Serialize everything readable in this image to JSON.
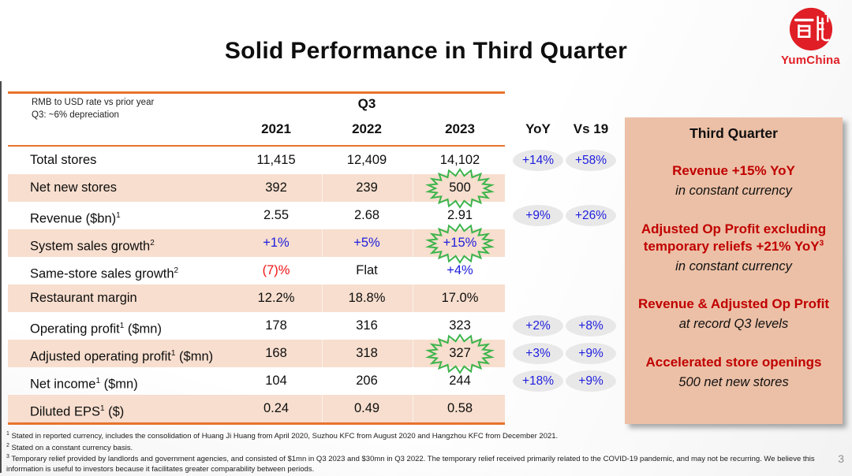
{
  "slide": {
    "title": "Solid Performance in Third Quarter",
    "page_number": "3",
    "logo": {
      "seal_characters": "百胜",
      "brand": "YumChina",
      "logo_red": "#E01E25"
    }
  },
  "table": {
    "rate_note_line1": "RMB to USD rate vs prior year",
    "rate_note_line2": "Q3: ~6% depreciation",
    "group_header": "Q3",
    "year_headers": [
      "2021",
      "2022",
      "2023"
    ],
    "yoy_header": "YoY",
    "vs19_header": "Vs 19",
    "rows": [
      {
        "pre": "Total stores",
        "sup": "",
        "post": "",
        "values": [
          "11,415",
          "12,409",
          "14,102"
        ],
        "colors": [
          "black",
          "black",
          "black"
        ],
        "star": -1,
        "yoy": "+14%",
        "vs19": "+58%",
        "shaded": false
      },
      {
        "pre": "Net new stores",
        "sup": "",
        "post": "",
        "values": [
          "392",
          "239",
          "500"
        ],
        "colors": [
          "black",
          "black",
          "black"
        ],
        "star": 2,
        "yoy": "",
        "vs19": "",
        "shaded": true
      },
      {
        "pre": "Revenue ($bn)",
        "sup": "1",
        "post": "",
        "values": [
          "2.55",
          "2.68",
          "2.91"
        ],
        "colors": [
          "black",
          "black",
          "black"
        ],
        "star": -1,
        "yoy": "+9%",
        "vs19": "+26%",
        "shaded": false
      },
      {
        "pre": "System sales growth",
        "sup": "2",
        "post": "",
        "values": [
          "+1%",
          "+5%",
          "+15%"
        ],
        "colors": [
          "blue",
          "blue",
          "blue"
        ],
        "star": 2,
        "yoy": "",
        "vs19": "",
        "shaded": true
      },
      {
        "pre": "Same-store sales growth",
        "sup": "2",
        "post": "",
        "values": [
          "(7)%",
          "Flat",
          "+4%"
        ],
        "colors": [
          "red",
          "black",
          "blue"
        ],
        "star": -1,
        "yoy": "",
        "vs19": "",
        "shaded": false
      },
      {
        "pre": "Restaurant margin",
        "sup": "",
        "post": "",
        "values": [
          "12.2%",
          "18.8%",
          "17.0%"
        ],
        "colors": [
          "black",
          "black",
          "black"
        ],
        "star": -1,
        "yoy": "",
        "vs19": "",
        "shaded": true
      },
      {
        "pre": "Operating profit",
        "sup": "1",
        "post": " ($mn)",
        "values": [
          "178",
          "316",
          "323"
        ],
        "colors": [
          "black",
          "black",
          "black"
        ],
        "star": -1,
        "yoy": "+2%",
        "vs19": "+8%",
        "shaded": false
      },
      {
        "pre": "Adjusted operating profit",
        "sup": "1",
        "post": " ($mn)",
        "values": [
          "168",
          "318",
          "327"
        ],
        "colors": [
          "black",
          "black",
          "black"
        ],
        "star": 2,
        "yoy": "+3%",
        "vs19": "+9%",
        "shaded": true
      },
      {
        "pre": "Net income",
        "sup": "1",
        "post": " ($mn)",
        "values": [
          "104",
          "206",
          "244"
        ],
        "colors": [
          "black",
          "black",
          "black"
        ],
        "star": -1,
        "yoy": "+18%",
        "vs19": "+9%",
        "shaded": false
      },
      {
        "pre": "Diluted EPS",
        "sup": "1",
        "post": " ($)",
        "values": [
          "0.24",
          "0.49",
          "0.58"
        ],
        "colors": [
          "black",
          "black",
          "black"
        ],
        "star": -1,
        "yoy": "",
        "vs19": "",
        "shaded": true
      }
    ]
  },
  "panel": {
    "title": "Third Quarter",
    "blocks": [
      {
        "style": "red",
        "text": "Revenue +15% YoY",
        "sup": ""
      },
      {
        "style": "italic",
        "text": "in constant currency",
        "sup": ""
      },
      {
        "style": "red",
        "text": "Adjusted Op Profit excluding temporary reliefs +21% YoY",
        "sup": "3"
      },
      {
        "style": "italic",
        "text": "in constant currency",
        "sup": ""
      },
      {
        "style": "red",
        "text": "Revenue & Adjusted Op Profit",
        "sup": ""
      },
      {
        "style": "italic",
        "text": "at record Q3 levels",
        "sup": ""
      },
      {
        "style": "red",
        "text": "Accelerated store openings",
        "sup": ""
      },
      {
        "style": "italic",
        "text": "500 net new stores",
        "sup": ""
      }
    ]
  },
  "footnotes": [
    {
      "sup": "1",
      "text": "Stated in reported currency, includes the consolidation of Huang Ji Huang from April 2020, Suzhou KFC from August 2020 and Hangzhou KFC from December 2021."
    },
    {
      "sup": "2",
      "text": "Stated on a constant currency basis."
    },
    {
      "sup": "3",
      "text": "Temporary relief provided by landlords and government agencies, and consisted of $1mn in Q3 2023 and $30mn in Q3 2022. The temporary relief received primarily related to the COVID-19 pandemic, and may not be recurring. We believe this information is useful to investors because it facilitates greater comparability between periods."
    }
  ],
  "colors": {
    "accent_orange": "#E8722C",
    "row_shade": "#F7DECE",
    "panel_bg": "#ECC0A6",
    "value_blue": "#1D1DDE",
    "bright_red": "#F01414",
    "dark_red": "#C00000",
    "starburst_green": "#3CB44B",
    "badge_gray": "#E9E8E8"
  }
}
